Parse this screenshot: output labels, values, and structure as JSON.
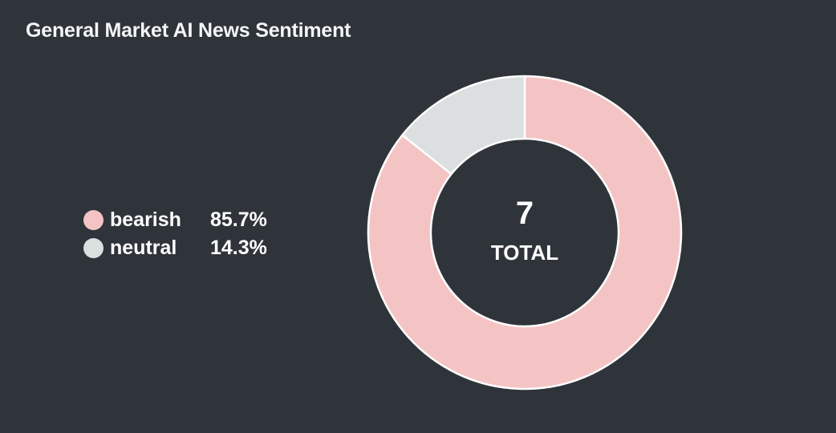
{
  "title": "General Market AI News Sentiment",
  "chart_data": {
    "type": "pie",
    "title": "General Market AI News Sentiment",
    "slices": [
      {
        "name": "bearish",
        "value": 6,
        "percent_label": "85.7%",
        "color": "#f4c4c5"
      },
      {
        "name": "neutral",
        "value": 1,
        "percent_label": "14.3%",
        "color": "#dbdfe0"
      }
    ],
    "center_value": "7",
    "center_label": "TOTAL",
    "legend_placement": "left",
    "donut": true
  }
}
